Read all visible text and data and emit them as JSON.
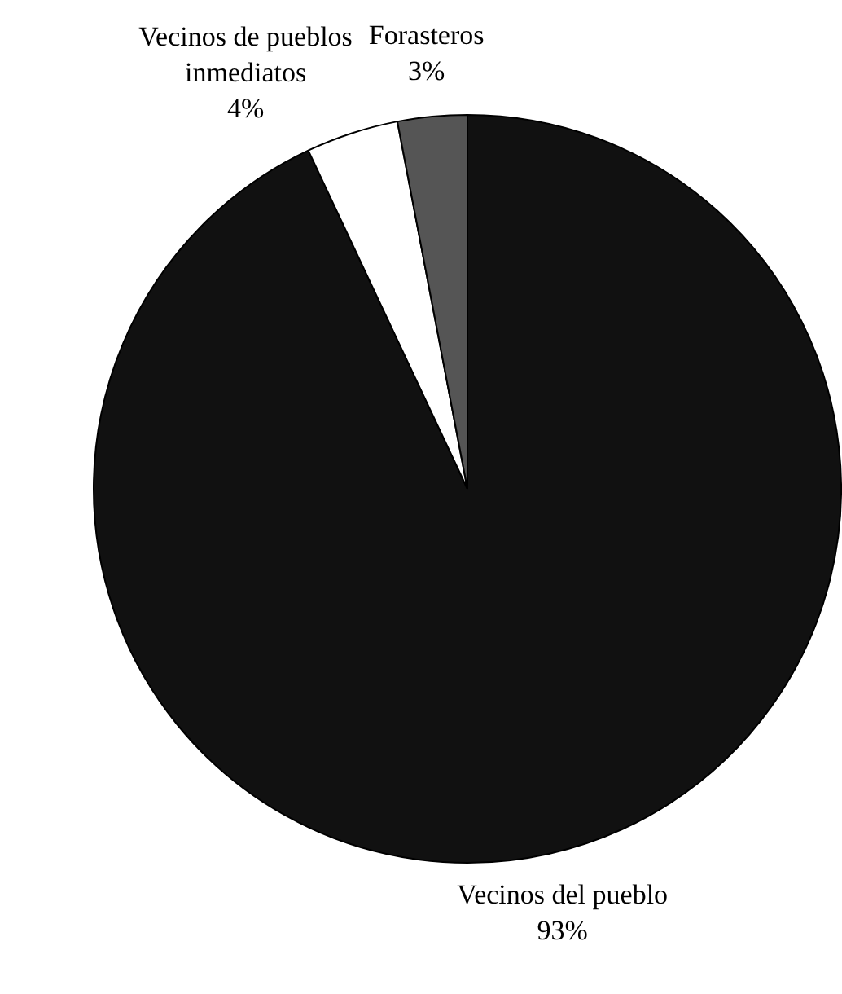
{
  "chart_data": {
    "type": "pie",
    "categories": [
      "Vecinos del pueblo",
      "Vecinos de pueblos inmediatos",
      "Forasteros"
    ],
    "values": [
      93,
      4,
      3
    ],
    "value_labels": [
      "93%",
      "4%",
      "3%"
    ],
    "colors": [
      "#111111",
      "#ffffff",
      "#555555"
    ],
    "legend": false
  }
}
